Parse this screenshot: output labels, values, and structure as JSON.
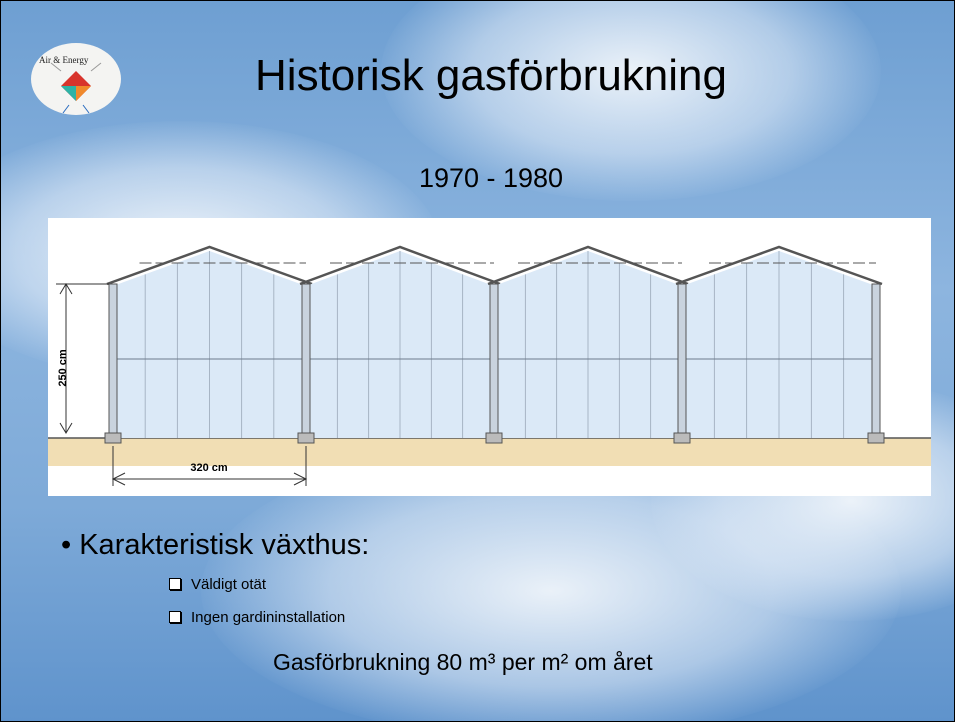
{
  "logo": {
    "text": "Air & Energy"
  },
  "header": {
    "title": "Historisk gasförbrukning",
    "subtitle": "1970 - 1980"
  },
  "diagram": {
    "height_label": "250 cm",
    "width_label": "320 cm"
  },
  "bullet": {
    "text": "Karakteristisk växthus:",
    "items": [
      "Väldigt otät",
      "Ingen gardininstallation"
    ]
  },
  "footer": {
    "text": "Gasförbrukning 80 m³ per m² om året"
  }
}
